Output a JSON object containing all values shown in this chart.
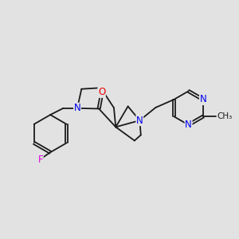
{
  "background_color": "#e2e2e2",
  "bond_color": "#1a1a1a",
  "atom_colors": {
    "N": "#0000ee",
    "O": "#ee0000",
    "F": "#dd00dd",
    "C": "#1a1a1a"
  },
  "figsize": [
    3.0,
    3.0
  ],
  "dpi": 100
}
